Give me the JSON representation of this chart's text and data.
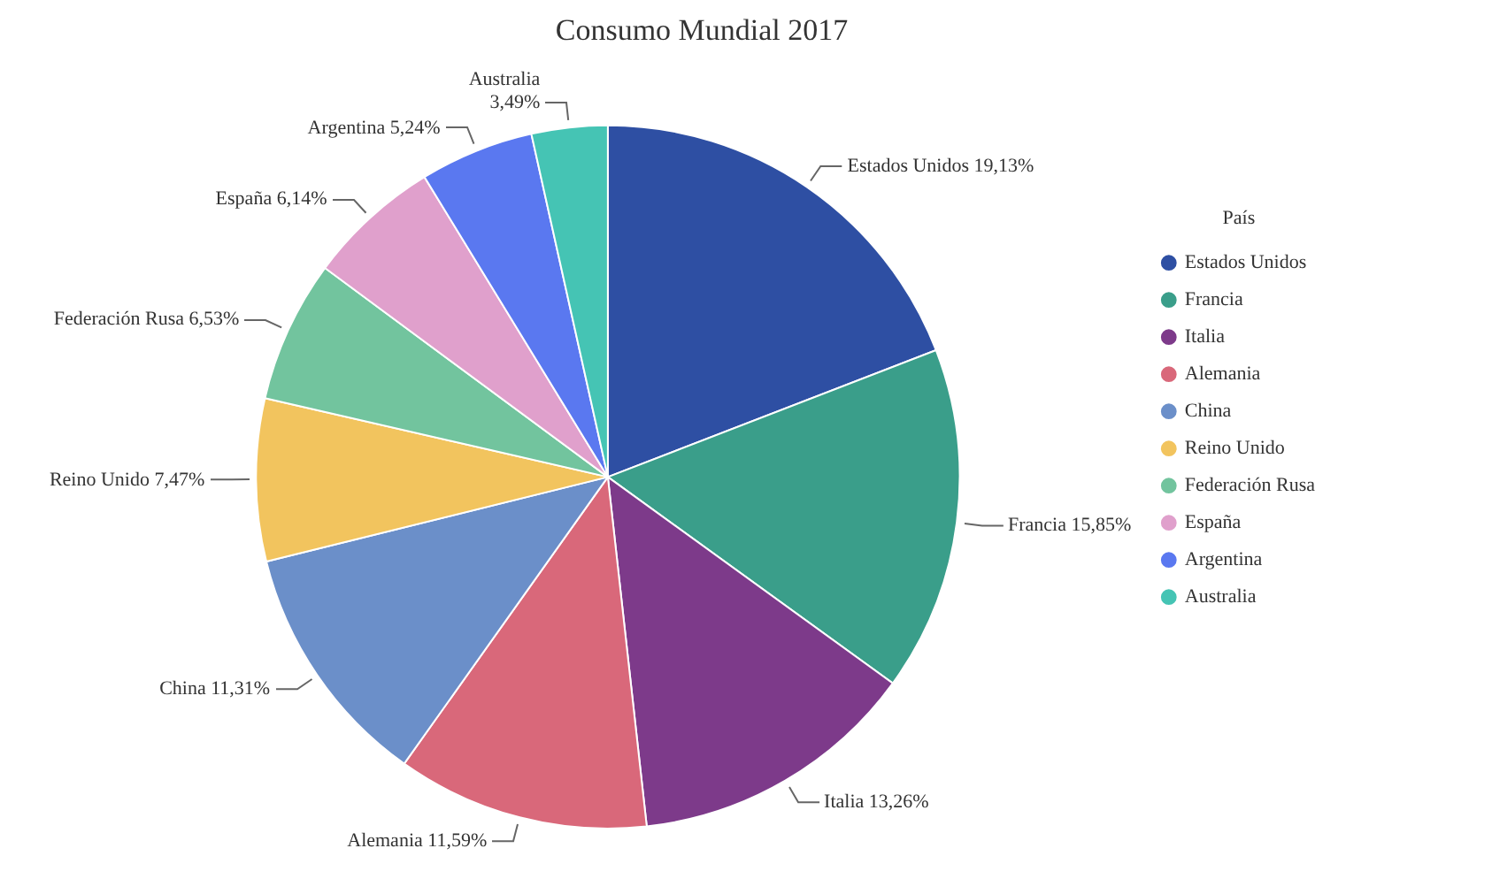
{
  "chart_data": {
    "type": "pie",
    "title": "Consumo Mundial 2017",
    "legend_title": "País",
    "legend": "right",
    "categories": [
      "Estados Unidos",
      "Francia",
      "Italia",
      "Alemania",
      "China",
      "Reino Unido",
      "Federación Rusa",
      "España",
      "Argentina",
      "Australia"
    ],
    "values": [
      19.13,
      15.85,
      13.26,
      11.59,
      11.31,
      7.47,
      6.53,
      6.14,
      5.24,
      3.49
    ],
    "value_labels": [
      "19,13%",
      "15,85%",
      "13,26%",
      "11,59%",
      "11,31%",
      "7,47%",
      "6,53%",
      "6,14%",
      "5,24%",
      "3,49%"
    ],
    "colors": [
      "#2e4fa3",
      "#3a9e8a",
      "#7d3a8a",
      "#d9687a",
      "#6b8fc9",
      "#f2c45e",
      "#72c49e",
      "#e0a0cc",
      "#5a78f0",
      "#45c4b4"
    ]
  }
}
